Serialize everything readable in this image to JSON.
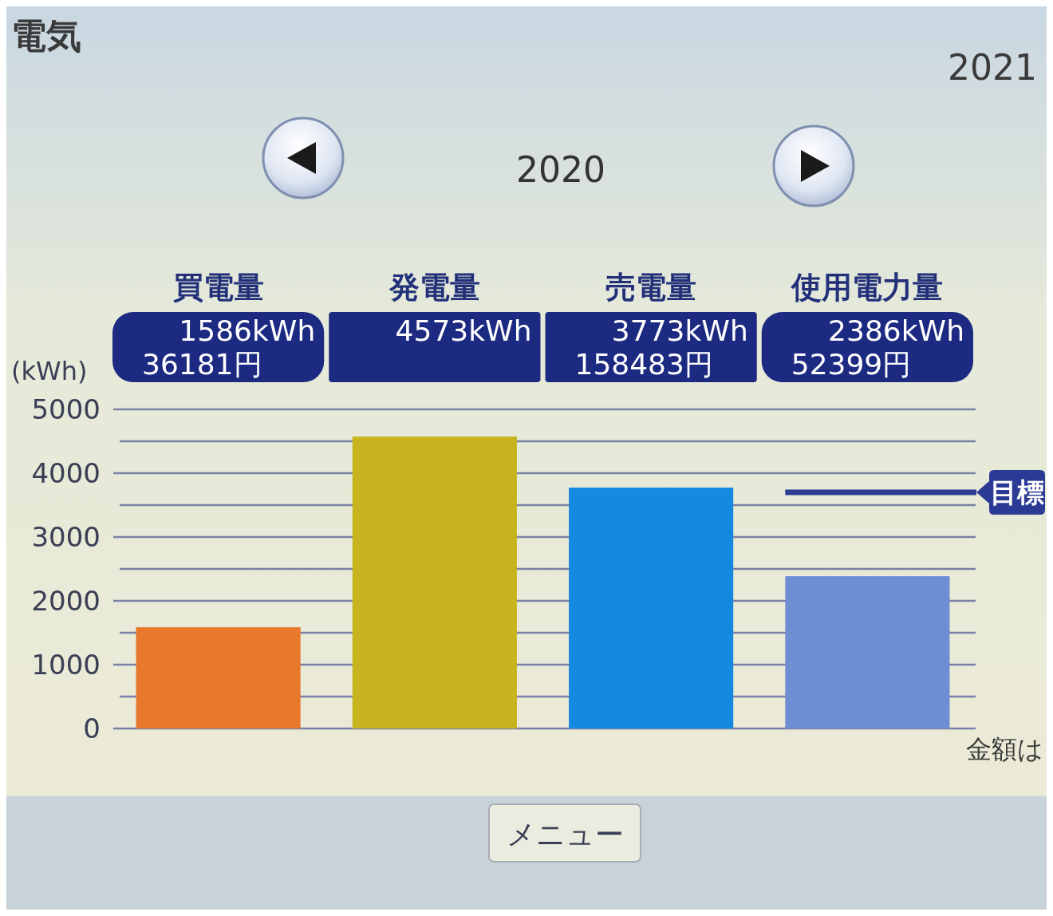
{
  "chart_data": {
    "type": "bar",
    "title": "電気",
    "subtitle": "2020",
    "ylabel": "(kWh)",
    "categories": [
      "買電量",
      "発電量",
      "売電量",
      "使用電力量"
    ],
    "values": [
      1586,
      4573,
      3773,
      2386
    ],
    "colors": [
      "#e8782c",
      "#c8b41e",
      "#1489e0",
      "#6e8ed4"
    ],
    "value_labels": [
      "1586kWh",
      "4573kWh",
      "3773kWh",
      "2386kWh"
    ],
    "ylim": [
      0,
      5000
    ],
    "yticks": [
      0,
      {
        "value": 500,
        "label": null
      },
      1000,
      {
        "value": 1500,
        "label": null
      },
      2000,
      {
        "value": 2500,
        "label": null
      },
      3000,
      {
        "value": 3500,
        "label": null
      },
      4000,
      {
        "value": 4500,
        "label": null
      },
      5000
    ],
    "grid": "y",
    "ref_lines": [
      {
        "axis": "y",
        "value": 3700,
        "label": "目標",
        "color": "#2b3a94"
      }
    ],
    "annotations": [
      "2021",
      "金額は",
      "メニュー",
      "36181円",
      "158483円",
      "52399円"
    ]
  }
}
